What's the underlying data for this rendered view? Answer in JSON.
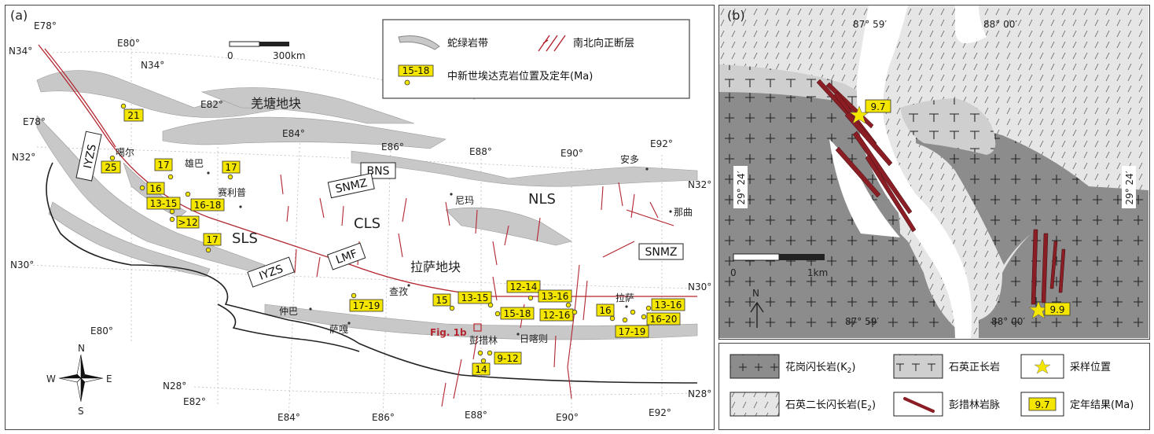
{
  "panel_a": {
    "label": "(a)",
    "scale": {
      "zero": "0",
      "max": "300km"
    },
    "legend": {
      "ophiolite": "蛇绿岩带",
      "faults": "南北向正断层",
      "adakite": "中新世埃达克岩位置及定年(Ma)",
      "sample_age": "15-18"
    },
    "coords": {
      "e78_top": "E78°",
      "n34_left": "N34°",
      "e80_top": "E80°",
      "n34_mid": "N34°",
      "e78_left": "E78°",
      "e82_top": "E82°",
      "e84_top": "E84°",
      "e86_top": "E86°",
      "e88_top": "E88°",
      "e90_top": "E90°",
      "e92_top": "E92°",
      "n32_left": "N32°",
      "n32_right": "N32°",
      "n30_left": "N30°",
      "n30_right": "N30°",
      "e80_bottom": "E80°",
      "n28_left": "N28°",
      "e82_bottom": "E82°",
      "e84_bottom": "E84°",
      "e86_bottom": "E86°",
      "e88_bottom": "E88°",
      "e90_bottom": "E90°",
      "e92_bottom": "E92°",
      "n28_right": "N28°"
    },
    "terranes": {
      "qiangtang": "羌塘地块",
      "lhasa": "拉萨地块",
      "sls": "SLS",
      "cls": "CLS",
      "nls": "NLS"
    },
    "zones": {
      "iyzs1": "IYZS",
      "iyzs2": "IYZS",
      "bns": "BNS",
      "snmz1": "SNMZ",
      "lmf": "LMF",
      "snmz2": "SNMZ"
    },
    "places": {
      "gaer": "噶尔",
      "xiongba": "雄巴",
      "selipu": "赛利普",
      "anduo": "安多",
      "nima": "尼玛",
      "naqu": "那曲",
      "zhongba": "仲巴",
      "chaya": "查孜",
      "saga": "萨嘎",
      "pengcuolin": "彭措林",
      "shigatse": "日喀则",
      "lhasa": "拉萨"
    },
    "ages": [
      "21",
      "25",
      "17",
      "17",
      "16",
      "13-15",
      "16-18",
      ">12",
      "17",
      "17-19",
      "15",
      "13-15",
      "12-14",
      "13-16",
      "15-18",
      "12-16",
      "9-12",
      "14",
      "16",
      "13-16",
      "16-20",
      "17-19"
    ],
    "fig_ref": "Fig. 1b",
    "compass": {
      "n": "N",
      "s": "S",
      "w": "W",
      "e": "E"
    }
  },
  "panel_b": {
    "label": "(b)",
    "coords": {
      "top1": "87° 59′",
      "top2": "88° 00′",
      "left": "29° 24′",
      "right": "29° 24′",
      "bottom1": "87° 59′",
      "bottom2": "88° 00′"
    },
    "scale": {
      "zero": "0",
      "max": "1km"
    },
    "north": "N",
    "samples": [
      "9.7",
      "9.9"
    ]
  },
  "legend_b": {
    "granodiorite": "花岗闪长岩(K",
    "granodiorite_sub": "2",
    "quartz_syenite": "石英正长岩",
    "sample_location": "采样位置",
    "monzogranodiorite": "石英二长闪长岩(E",
    "monzo_sub": "2",
    "pengcuolin_dike": "彭措林岩脉",
    "age_box": "9.7",
    "age_result": "定年结果(Ma)"
  },
  "colors": {
    "ophiolite": "#c8c8c8",
    "fault": "#b3262f",
    "age_box": "#f5e600",
    "granodiorite": "#8c8c8c",
    "syenite": "#cfcfcf",
    "monzo": "#e6e6e6"
  }
}
